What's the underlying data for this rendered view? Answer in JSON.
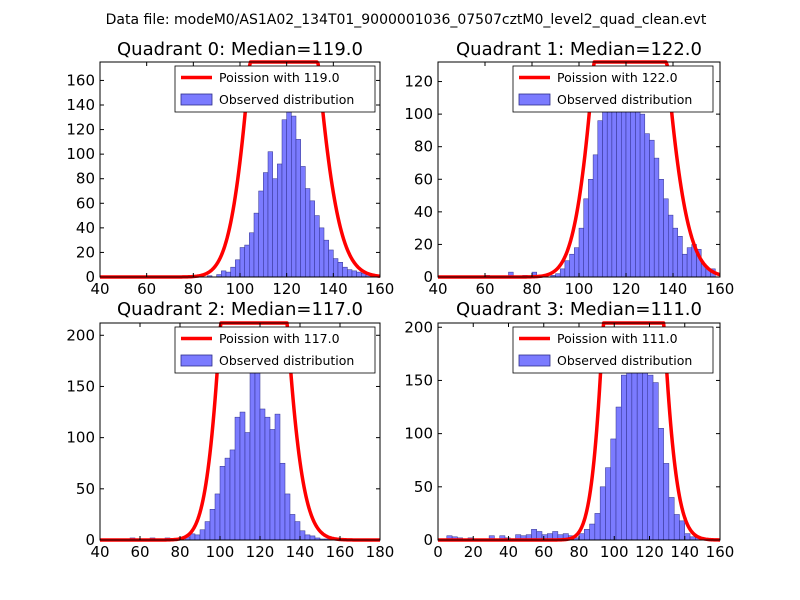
{
  "figure": {
    "title": "Data file: modeM0/AS1A02_134T01_9000001036_07507cztM0_level2_quad_clean.evt"
  },
  "colors": {
    "bars": "#7b7bff",
    "bar_edge": "#2e2e8a",
    "curve": "#ff0000"
  },
  "chart_data": [
    {
      "type": "bar",
      "title": "Quadrant 0: Median=119.0",
      "xlabel": "",
      "ylabel": "",
      "xlim": [
        40,
        160
      ],
      "ylim": [
        0,
        175
      ],
      "xticks": [
        40,
        60,
        80,
        100,
        120,
        140,
        160
      ],
      "yticks": [
        0,
        20,
        40,
        60,
        80,
        100,
        120,
        140,
        160
      ],
      "legend": {
        "placement": "top-right",
        "entries": [
          "Poission with 119.0",
          "Observed distribution"
        ]
      },
      "bin_width": 2,
      "bin_starts": [
        56,
        58,
        60,
        62,
        64,
        66,
        68,
        70,
        72,
        74,
        76,
        78,
        80,
        82,
        84,
        86,
        88,
        90,
        92,
        94,
        96,
        98,
        100,
        102,
        104,
        106,
        108,
        110,
        112,
        114,
        116,
        118,
        120,
        122,
        124,
        126,
        128,
        130,
        132,
        134,
        136,
        138,
        140,
        142,
        144,
        146,
        148,
        150,
        152,
        154,
        156,
        158
      ],
      "counts": [
        1,
        0,
        0,
        0,
        0,
        0,
        0,
        0,
        0,
        0,
        0,
        0,
        0,
        0,
        0,
        1,
        0,
        2,
        5,
        4,
        8,
        14,
        24,
        26,
        36,
        52,
        70,
        85,
        102,
        80,
        92,
        128,
        135,
        131,
        112,
        90,
        72,
        62,
        50,
        40,
        30,
        22,
        15,
        12,
        8,
        6,
        5,
        4,
        3,
        2,
        1,
        1
      ],
      "poisson_mean": 119.0,
      "poisson_scale": 11750
    },
    {
      "type": "bar",
      "title": "Quadrant 1: Median=122.0",
      "xlabel": "",
      "ylabel": "",
      "xlim": [
        40,
        160
      ],
      "ylim": [
        0,
        132
      ],
      "xticks": [
        40,
        60,
        80,
        100,
        120,
        140,
        160
      ],
      "yticks": [
        0,
        20,
        40,
        60,
        80,
        100,
        120
      ],
      "legend": {
        "placement": "top-right",
        "entries": [
          "Poission with 122.0",
          "Observed distribution"
        ]
      },
      "bin_width": 2,
      "bin_starts": [
        60,
        62,
        64,
        66,
        68,
        70,
        72,
        74,
        76,
        78,
        80,
        82,
        84,
        86,
        88,
        90,
        92,
        94,
        96,
        98,
        100,
        102,
        104,
        106,
        108,
        110,
        112,
        114,
        116,
        118,
        120,
        122,
        124,
        126,
        128,
        130,
        132,
        134,
        136,
        138,
        140,
        142,
        144,
        146,
        148,
        150,
        152,
        154,
        156
      ],
      "counts": [
        1,
        0,
        0,
        0,
        0,
        3,
        0,
        0,
        1,
        0,
        3,
        0,
        0,
        0,
        1,
        2,
        5,
        10,
        14,
        18,
        30,
        48,
        60,
        75,
        96,
        103,
        113,
        122,
        126,
        125,
        122,
        121,
        112,
        100,
        88,
        84,
        73,
        60,
        48,
        38,
        30,
        25,
        14,
        18,
        20,
        17,
        8,
        5,
        5
      ],
      "poisson_mean": 122.0,
      "poisson_scale": 9850
    },
    {
      "type": "bar",
      "title": "Quadrant 2: Median=117.0",
      "xlabel": "",
      "ylabel": "",
      "xlim": [
        40,
        180
      ],
      "ylim": [
        0,
        212
      ],
      "xticks": [
        40,
        60,
        80,
        100,
        120,
        140,
        160,
        180
      ],
      "yticks": [
        0,
        50,
        100,
        150,
        200
      ],
      "legend": {
        "placement": "top-right",
        "entries": [
          "Poission with 117.0",
          "Observed distribution"
        ]
      },
      "bin_width": 2.5,
      "bin_starts": [
        55,
        57.5,
        60,
        62.5,
        65,
        67.5,
        70,
        72.5,
        75,
        77.5,
        80,
        82.5,
        85,
        87.5,
        90,
        92.5,
        95,
        97.5,
        100,
        102.5,
        105,
        107.5,
        110,
        112.5,
        115,
        117.5,
        120,
        122.5,
        125,
        127.5,
        130,
        132.5,
        135,
        137.5,
        140,
        142.5,
        145,
        147.5,
        150,
        152.5,
        155,
        157.5,
        160,
        162.5,
        165,
        167.5
      ],
      "counts": [
        2,
        0,
        0,
        0,
        2,
        0,
        0,
        2,
        0,
        1,
        0,
        3,
        6,
        5,
        10,
        18,
        30,
        45,
        72,
        80,
        88,
        120,
        125,
        105,
        208,
        180,
        128,
        120,
        108,
        123,
        75,
        45,
        25,
        18,
        9,
        5,
        4,
        2,
        1,
        1,
        0,
        0,
        0,
        0,
        0,
        1
      ],
      "poisson_mean": 117.0,
      "poisson_scale": 18960
    },
    {
      "type": "bar",
      "title": "Quadrant 3: Median=111.0",
      "xlabel": "",
      "ylabel": "",
      "xlim": [
        0,
        160
      ],
      "ylim": [
        0,
        204
      ],
      "xticks": [
        0,
        20,
        40,
        60,
        80,
        100,
        120,
        140,
        160
      ],
      "yticks": [
        0,
        50,
        100,
        150,
        200
      ],
      "legend": {
        "placement": "top-right",
        "entries": [
          "Poission with 111.0",
          "Observed distribution"
        ]
      },
      "bin_width": 3,
      "bin_starts": [
        5,
        8,
        11,
        14,
        17,
        20,
        23,
        26,
        29,
        32,
        35,
        38,
        41,
        44,
        47,
        50,
        53,
        56,
        59,
        62,
        65,
        68,
        71,
        74,
        77,
        80,
        83,
        86,
        89,
        92,
        95,
        98,
        101,
        104,
        107,
        110,
        113,
        116,
        119,
        122,
        125,
        128,
        131,
        134,
        137,
        140,
        143,
        146,
        149,
        152,
        155
      ],
      "counts": [
        4,
        3,
        2,
        0,
        2,
        0,
        0,
        0,
        4,
        0,
        4,
        2,
        0,
        5,
        4,
        5,
        10,
        8,
        5,
        6,
        8,
        5,
        6,
        4,
        2,
        6,
        10,
        15,
        25,
        50,
        68,
        95,
        125,
        155,
        185,
        195,
        190,
        178,
        155,
        148,
        105,
        72,
        40,
        24,
        18,
        6,
        3,
        2,
        1,
        0,
        1
      ],
      "poisson_mean": 111.0,
      "poisson_scale": 20450
    }
  ]
}
